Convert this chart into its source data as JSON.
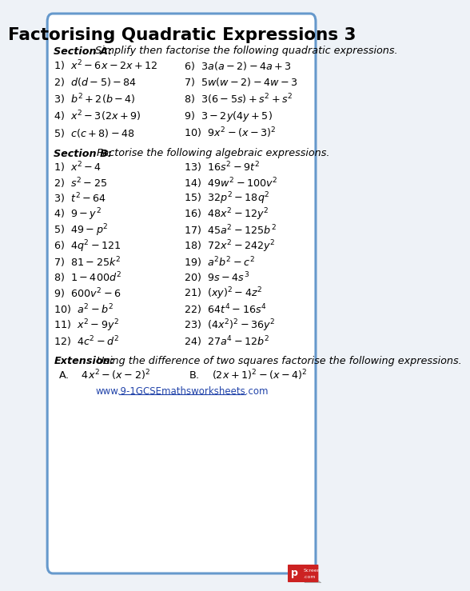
{
  "title": "Factorising Quadratic Expressions 3",
  "bg_color": "#eef2f7",
  "border_color": "#6699cc",
  "section_a_left": [
    "1)  $x^2 - 6x - 2x + 12$",
    "2)  $d(d - 5) - 84$",
    "3)  $b^2 + 2(b - 4)$",
    "4)  $x^2 - 3(2x + 9)$",
    "5)  $c(c + 8) - 48$"
  ],
  "section_a_right": [
    "6)  $3a(a - 2) - 4a + 3$",
    "7)  $5w(w - 2) - 4w - 3$",
    "8)  $3(6 - 5s) + s^2 + s^2$",
    "9)  $3 - 2y(4y + 5)$",
    "10)  $9x^2 - (x - 3)^2$"
  ],
  "section_b_left": [
    "1)  $x^2 - 4$",
    "2)  $s^2 - 25$",
    "3)  $t^2 - 64$",
    "4)  $9 - y^2$",
    "5)  $49 - p^2$",
    "6)  $4q^2 - 121$",
    "7)  $81 - 25k^2$",
    "8)  $1 - 400d^2$",
    "9)  $600v^2 - 6$",
    "10)  $a^2 - b^2$",
    "11)  $x^2 - 9y^2$",
    "12)  $4c^2 - d^2$"
  ],
  "section_b_right": [
    "13)  $16s^2 - 9t^2$",
    "14)  $49w^2 - 100v^2$",
    "15)  $32p^2 - 18q^2$",
    "16)  $48x^2 - 12y^2$",
    "17)  $45a^2 - 125b^2$",
    "18)  $72x^2 - 242y^2$",
    "19)  $a^2b^2 - c^2$",
    "20)  $9s - 4s^3$",
    "21)  $(xy)^2 - 4z^2$",
    "22)  $64t^4 - 16s^4$",
    "23)  $(4x^2)^2 - 36y^2$",
    "24)  $27a^4 - 12b^2$"
  ],
  "extension_a": "A.    $4x^2 - (x-2)^2$",
  "extension_b": "B.    $(2x+1)^2 - (x-4)^2$",
  "website": "www.9-1GCSEmathsworksheets.com"
}
